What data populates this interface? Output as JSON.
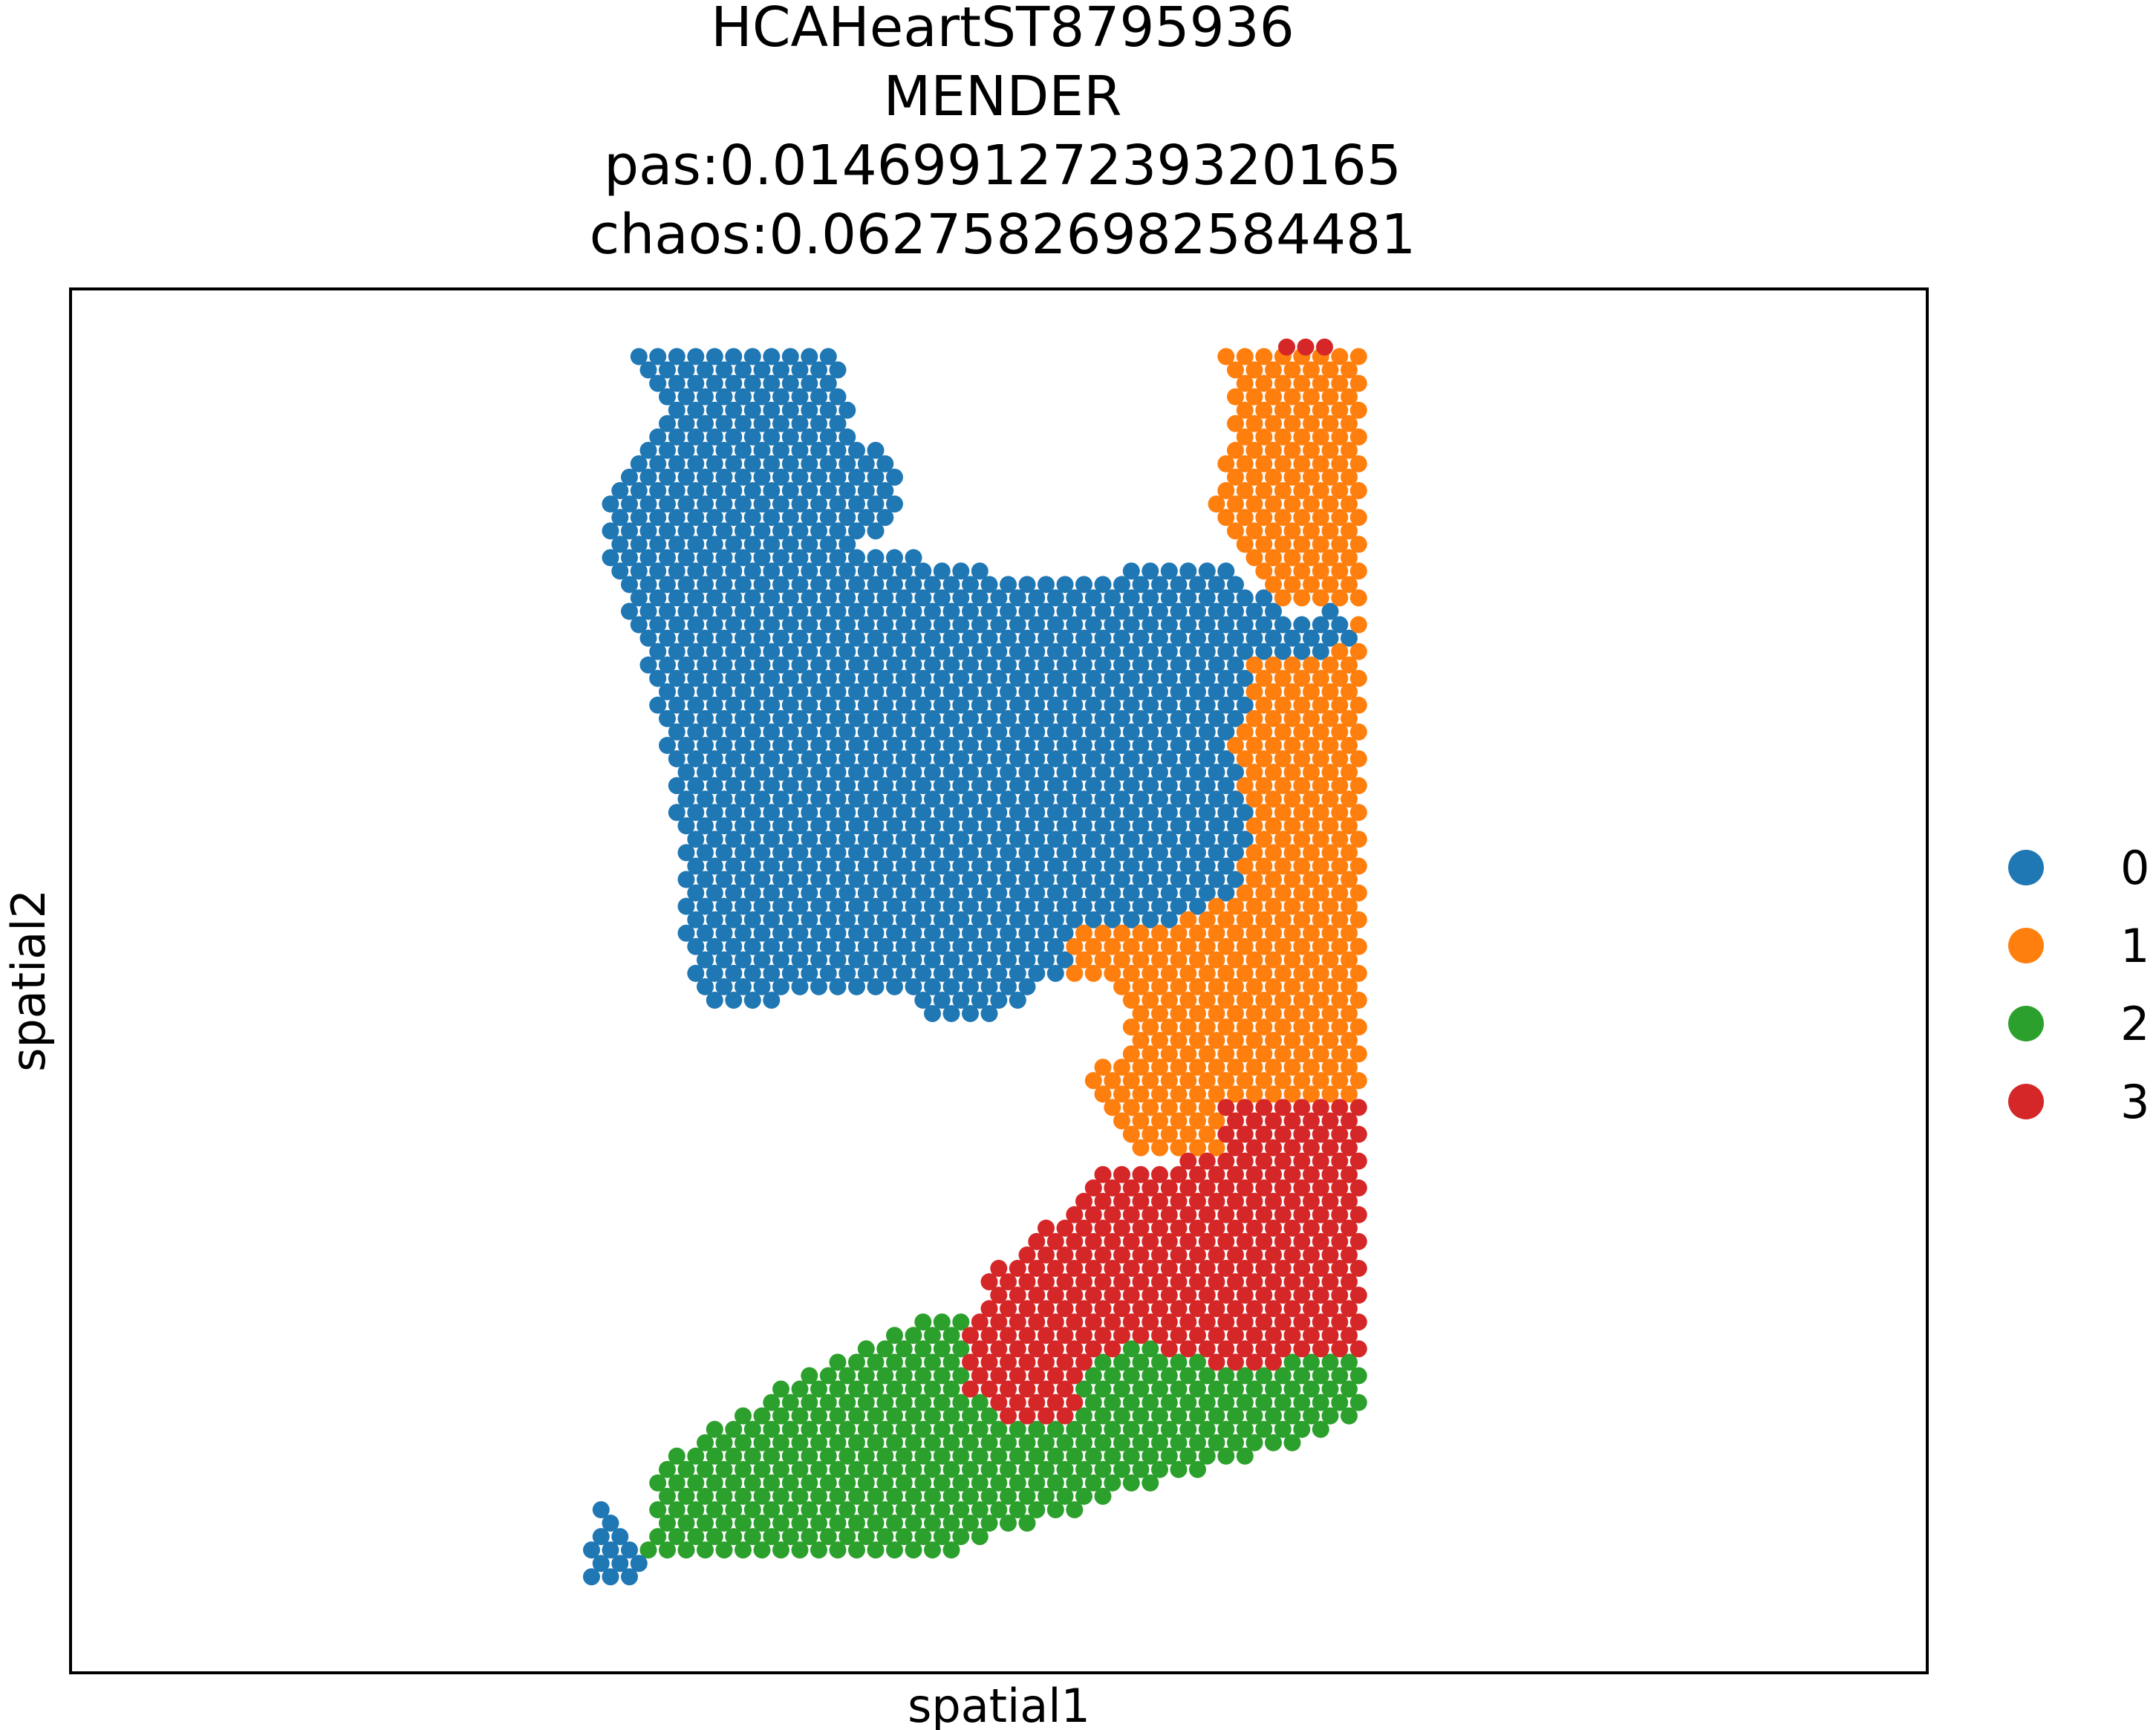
{
  "chart_data": {
    "type": "scatter",
    "title_lines": [
      "HCAHeartST8795936",
      "MENDER",
      "pas:0.014699127239320165",
      "chaos:0.06275826982584481"
    ],
    "xlabel": "spatial1",
    "ylabel": "spatial2",
    "ticks_shown": false,
    "grid": false,
    "legend_placement": "right-outside",
    "legend": [
      {
        "label": "0",
        "color": "#1f77b4"
      },
      {
        "label": "1",
        "color": "#ff7f0e"
      },
      {
        "label": "2",
        "color": "#2ca02c"
      },
      {
        "label": "3",
        "color": "#d62728"
      }
    ],
    "xlim": [
      0,
      100
    ],
    "ylim": [
      0,
      100
    ],
    "series": [
      {
        "cluster": "0",
        "regions": [
          [
            [
              30.3,
              95.8
            ],
            [
              41.5,
              95.8
            ],
            [
              42.0,
              89.0
            ],
            [
              44.5,
              88.0
            ],
            [
              45.0,
              84.0
            ],
            [
              42.5,
              81.3
            ],
            [
              44.0,
              81.0
            ],
            [
              50.0,
              79.5
            ],
            [
              56.0,
              79.5
            ],
            [
              60.0,
              80.5
            ],
            [
              63.0,
              79.5
            ],
            [
              65.5,
              76.0
            ],
            [
              68.5,
              77.0
            ],
            [
              69.5,
              75.0
            ],
            [
              67.5,
              73.5
            ],
            [
              63.0,
              73.5
            ],
            [
              63.5,
              70.5
            ],
            [
              62.5,
              67.0
            ],
            [
              63.8,
              60.0
            ],
            [
              62.5,
              56.0
            ],
            [
              60.0,
              54.5
            ],
            [
              58.5,
              53.5
            ],
            [
              57.0,
              54.5
            ],
            [
              54.5,
              54.0
            ],
            [
              53.0,
              50.0
            ],
            [
              50.0,
              47.5
            ],
            [
              46.5,
              47.5
            ],
            [
              45.0,
              49.0
            ],
            [
              39.0,
              49.0
            ],
            [
              37.0,
              48.0
            ],
            [
              34.0,
              48.5
            ],
            [
              33.0,
              53.0
            ],
            [
              33.0,
              57.0
            ],
            [
              32.5,
              63.0
            ],
            [
              31.5,
              70.0
            ],
            [
              30.5,
              75.0
            ],
            [
              29.0,
              80.0
            ],
            [
              29.0,
              86.0
            ],
            [
              30.5,
              88.0
            ],
            [
              32.0,
              90.0
            ],
            [
              31.0,
              93.5
            ]
          ]
        ]
      },
      {
        "cluster": "1",
        "regions": [
          [
            [
              61.5,
              95.8
            ],
            [
              69.5,
              95.8
            ],
            [
              69.5,
              77.0
            ],
            [
              65.5,
              77.0
            ],
            [
              63.0,
              80.5
            ],
            [
              61.0,
              84.5
            ],
            [
              62.5,
              88.0
            ],
            [
              62.5,
              92.5
            ]
          ],
          [
            [
              65.5,
              76.0
            ],
            [
              69.5,
              76.0
            ],
            [
              69.5,
              41.5
            ],
            [
              62.0,
              41.5
            ],
            [
              62.0,
              37.0
            ],
            [
              57.0,
              37.0
            ],
            [
              56.0,
              40.0
            ],
            [
              54.5,
              42.5
            ],
            [
              56.5,
              45.0
            ],
            [
              57.0,
              47.5
            ],
            [
              56.0,
              50.0
            ],
            [
              53.0,
              50.0
            ],
            [
              54.5,
              54.0
            ],
            [
              57.0,
              54.5
            ],
            [
              60.0,
              54.5
            ],
            [
              62.5,
              56.0
            ],
            [
              63.8,
              60.0
            ],
            [
              62.5,
              67.0
            ],
            [
              63.5,
              70.5
            ],
            [
              63.0,
              73.5
            ]
          ]
        ]
      },
      {
        "cluster": "2",
        "regions": [
          [
            [
              69.5,
              82.0
            ],
            [
              69.5,
              78.0
            ],
            [
              67.0,
              78.0
            ]
          ],
          [
            [
              48.5,
              26.0
            ],
            [
              46.0,
              26.0
            ],
            [
              43.0,
              24.0
            ],
            [
              40.0,
              22.0
            ],
            [
              37.0,
              19.5
            ],
            [
              34.0,
              17.5
            ],
            [
              31.5,
              14.5
            ],
            [
              31.0,
              8.0
            ],
            [
              46.5,
              8.0
            ],
            [
              50.0,
              10.0
            ],
            [
              56.0,
              12.5
            ],
            [
              62.0,
              15.0
            ],
            [
              67.0,
              17.0
            ],
            [
              69.5,
              19.0
            ],
            [
              69.5,
              23.0
            ],
            [
              62.0,
              22.0
            ],
            [
              57.0,
              24.0
            ],
            [
              55.0,
              22.5
            ],
            [
              54.0,
              18.5
            ],
            [
              50.0,
              18.0
            ],
            [
              48.0,
              21.0
            ]
          ]
        ]
      },
      {
        "cluster": "3",
        "regions": [
          [
            [
              69.5,
              41.5
            ],
            [
              69.5,
              23.0
            ],
            [
              62.0,
              22.0
            ],
            [
              57.0,
              24.0
            ],
            [
              55.0,
              22.5
            ],
            [
              54.0,
              18.5
            ],
            [
              50.0,
              18.0
            ],
            [
              48.0,
              21.0
            ],
            [
              48.5,
              26.0
            ],
            [
              50.0,
              29.5
            ],
            [
              53.0,
              33.0
            ],
            [
              55.0,
              36.5
            ],
            [
              60.0,
              37.0
            ],
            [
              62.0,
              37.0
            ],
            [
              62.0,
              41.5
            ]
          ],
          [
            [
              65.5,
              95.8
            ],
            [
              68.0,
              95.8
            ]
          ]
        ]
      },
      {
        "cluster": "0",
        "regions": [
          [
            [
              27.5,
              6.5
            ],
            [
              30.5,
              6.5
            ],
            [
              31.5,
              8.5
            ],
            [
              28.5,
              12.0
            ]
          ]
        ]
      }
    ]
  }
}
